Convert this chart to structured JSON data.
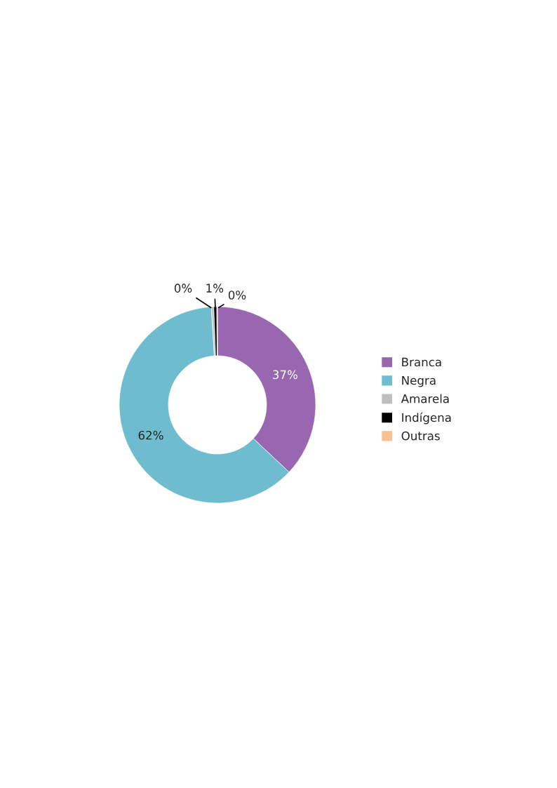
{
  "chart_data": {
    "type": "donut",
    "categories": [
      "Branca",
      "Negra",
      "Amarela",
      "Indígena",
      "Outras"
    ],
    "values": [
      37,
      62,
      0.4,
      0.5,
      0.1
    ],
    "value_labels": [
      "37%",
      "62%",
      "0%",
      "1%",
      "0%"
    ],
    "colors": [
      "#9966b0",
      "#6fbccf",
      "#bfbfbf",
      "#000000",
      "#fac090"
    ],
    "legend": "right"
  }
}
